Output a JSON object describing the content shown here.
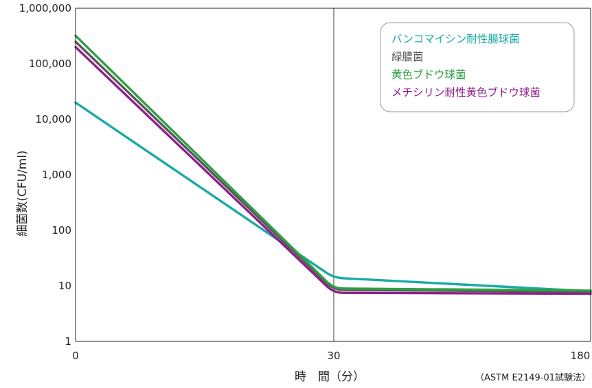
{
  "chart_data": {
    "type": "line",
    "yscale": "log",
    "ylabel": "細菌数(CFU/ml)",
    "xlabel": "時　間（分）",
    "footnote": "（ASTM E2149-01試験法）",
    "xlim": [
      0,
      180
    ],
    "ylim": [
      1,
      1000000
    ],
    "x_ticks": [
      0,
      30,
      180
    ],
    "x_tick_labels": [
      "0",
      "30",
      "180"
    ],
    "y_ticks": [
      1,
      10,
      100,
      1000,
      10000,
      100000,
      1000000
    ],
    "y_tick_labels": [
      "1",
      "10",
      "100",
      "1,000",
      "10,000",
      "100,000",
      "1,000,000"
    ],
    "vertical_line_x": 30,
    "legend_position": "top-right",
    "series": [
      {
        "name": "バンコマイシン耐性腸球菌",
        "color": "#1aaaa6",
        "x": [
          0,
          30,
          180
        ],
        "y": [
          20000,
          14,
          8
        ]
      },
      {
        "name": "緑膿菌",
        "color": "#595757",
        "x": [
          0,
          30,
          180
        ],
        "y": [
          250000,
          8.5,
          7.8
        ]
      },
      {
        "name": "黄色ブドウ球菌",
        "color": "#2ea043",
        "x": [
          0,
          30,
          180
        ],
        "y": [
          320000,
          9,
          8.2
        ]
      },
      {
        "name": "メチシリン耐性黄色ブドウ球菌",
        "color": "#8e1e8c",
        "x": [
          0,
          30,
          180
        ],
        "y": [
          200000,
          7.5,
          7.2
        ]
      }
    ]
  }
}
